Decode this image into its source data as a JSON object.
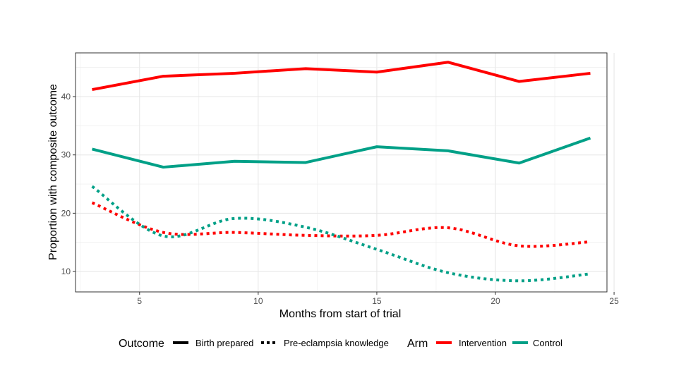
{
  "chart_data": {
    "type": "line",
    "xlabel": "Months from start of trial",
    "ylabel": "Proportion with composite outcome",
    "xlim": [
      2.3,
      24.7
    ],
    "ylim": [
      6.5,
      47.5
    ],
    "x_ticks": [
      5,
      10,
      15,
      20,
      25
    ],
    "y_ticks": [
      10,
      20,
      30,
      40
    ],
    "grid": true,
    "legend_position": "bottom",
    "x": [
      3,
      6,
      9,
      12,
      15,
      18,
      21,
      24
    ],
    "series": [
      {
        "outcome": "Birth prepared",
        "arm": "Intervention",
        "color": "#ff0000",
        "linestyle": "solid",
        "values": [
          41.2,
          43.5,
          44.0,
          44.8,
          44.2,
          45.9,
          42.6,
          44.0
        ]
      },
      {
        "outcome": "Birth prepared",
        "arm": "Control",
        "color": "#00a087",
        "linestyle": "solid",
        "values": [
          31.0,
          27.9,
          28.9,
          28.7,
          31.4,
          30.7,
          28.6,
          32.9
        ]
      },
      {
        "outcome": "Pre-eclampsia knowledge",
        "arm": "Intervention",
        "color": "#ff0000",
        "linestyle": "dotted",
        "values": [
          21.8,
          16.7,
          16.7,
          16.2,
          16.2,
          17.5,
          14.4,
          15.1
        ]
      },
      {
        "outcome": "Pre-eclampsia knowledge",
        "arm": "Control",
        "color": "#00a087",
        "linestyle": "dotted",
        "values": [
          24.6,
          16.1,
          19.1,
          17.6,
          13.8,
          9.8,
          8.4,
          9.6
        ]
      }
    ]
  },
  "legend": {
    "outcome_title": "Outcome",
    "outcome_items": [
      {
        "label": "Birth prepared",
        "linestyle": "solid"
      },
      {
        "label": "Pre-eclampsia knowledge",
        "linestyle": "dotted"
      }
    ],
    "arm_title": "Arm",
    "arm_items": [
      {
        "label": "Intervention",
        "color": "#ff0000"
      },
      {
        "label": "Control",
        "color": "#00a087"
      }
    ]
  }
}
